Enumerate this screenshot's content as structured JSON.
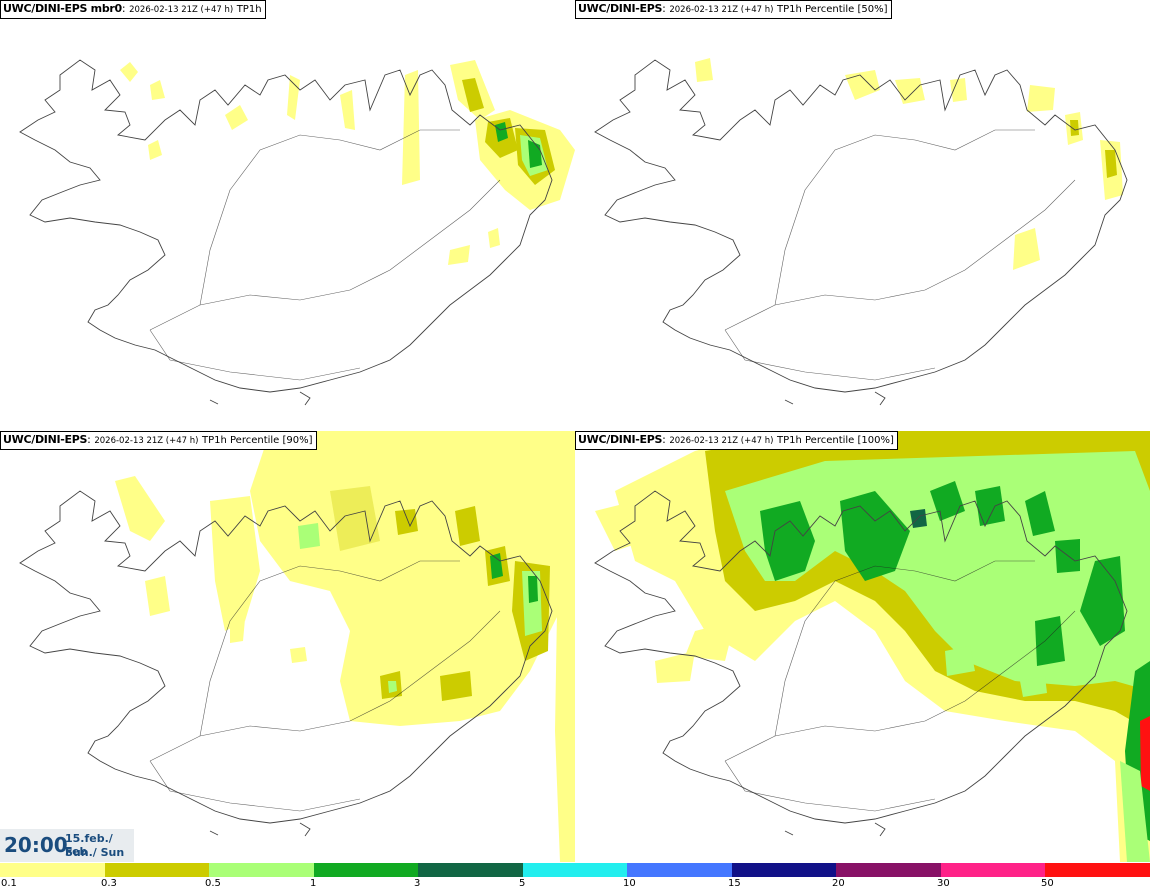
{
  "panels": [
    {
      "model": "UWC/DINI-EPS mbr0",
      "runinfo": "2026-02-13 21Z (+47 h)",
      "param": "TP1h"
    },
    {
      "model": "UWC/DINI-EPS",
      "runinfo": "2026-02-13 21Z (+47 h)",
      "param": "TP1h Percentile [50%]"
    },
    {
      "model": "UWC/DINI-EPS",
      "runinfo": "2026-02-13 21Z (+47 h)",
      "param": "TP1h Percentile [90%]"
    },
    {
      "model": "UWC/DINI-EPS",
      "runinfo": "2026-02-13 21Z (+47 h)",
      "param": "TP1h Percentile [100%]"
    }
  ],
  "valid_time": {
    "time": "20:00",
    "date_line1": "15.feb./ Feb",
    "date_line2": "Sun./ Sun"
  },
  "legend": {
    "colors": [
      "#ffff88",
      "#cccc00",
      "#aaff77",
      "#11aa22",
      "#116644",
      "#22eeee",
      "#4477ff",
      "#111188",
      "#881166",
      "#ff2288",
      "#ff1111"
    ],
    "labels": [
      "0.1",
      "0.3",
      "0.5",
      "1",
      "3",
      "5",
      "10",
      "15",
      "20",
      "30",
      "50"
    ]
  },
  "colors": {
    "coast": "#444444",
    "roads": "#222222",
    "light_yellow": "#ffff88",
    "olive": "#cccc00",
    "light_green": "#aaff77",
    "green": "#11aa22",
    "dark_green": "#116644",
    "clock_text": "#1a4c7e"
  }
}
